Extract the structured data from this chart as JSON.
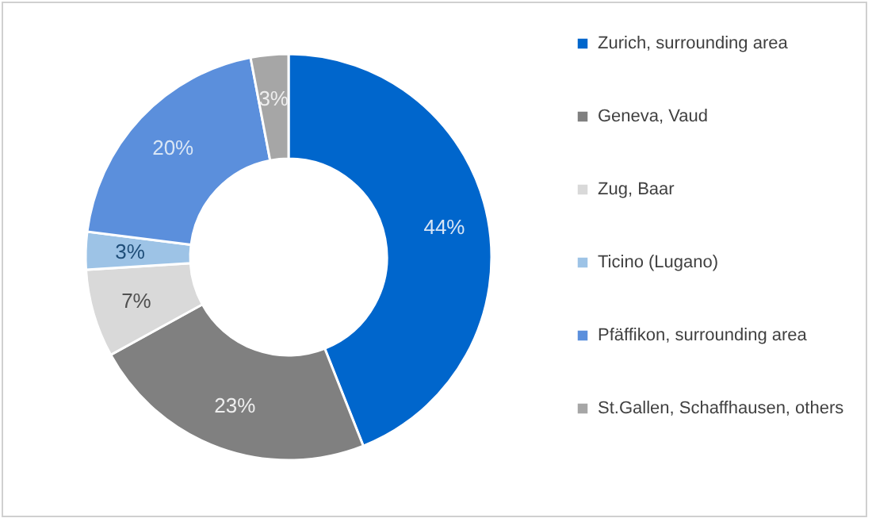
{
  "chart_data": {
    "type": "donut",
    "categories": [
      "Zurich, surrounding area",
      "Geneva, Vaud",
      "Zug, Baar",
      "Ticino (Lugano)",
      "Pfäffikon, surrounding area",
      "St.Gallen, Schaffhausen, others"
    ],
    "values": [
      44,
      23,
      7,
      3,
      20,
      3
    ],
    "colors": [
      "#0066cc",
      "#808080",
      "#d9d9d9",
      "#9dc3e6",
      "#5b8fdc",
      "#a6a6a6"
    ],
    "value_labels": [
      "44%",
      "23%",
      "7%",
      "3%",
      "20%",
      "3%"
    ],
    "legend": "right"
  }
}
